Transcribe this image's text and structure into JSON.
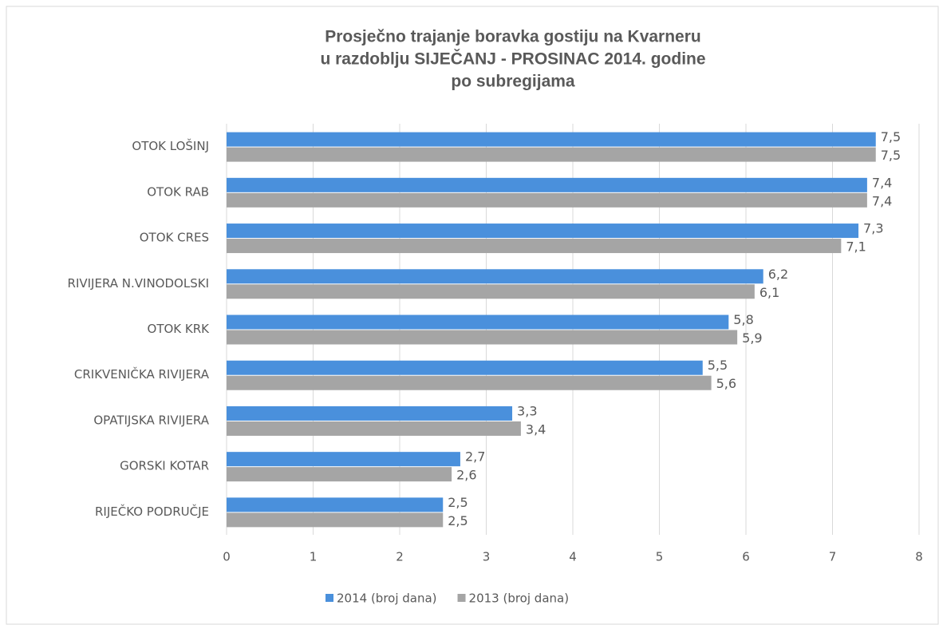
{
  "chart_data": {
    "type": "hbar",
    "title": [
      "Prosječno trajanje boravka gostiju na Kvarneru",
      "u razdoblju SIJEČANJ - PROSINAC 2014. godine",
      "po subregijama"
    ],
    "categories": [
      "OTOK LOŠINJ",
      "OTOK RAB",
      "OTOK CRES",
      "RIVIJERA N.VINODOLSKI",
      "OTOK KRK",
      "CRIKVENIČKA RIVIJERA",
      "OPATIJSKA RIVIJERA",
      "GORSKI KOTAR",
      "RIJEČKO PODRUČJE"
    ],
    "series": [
      {
        "name": "2014 (broj dana)",
        "color": "#4a90dc",
        "values": [
          7.5,
          7.4,
          7.3,
          6.2,
          5.8,
          5.5,
          3.3,
          2.7,
          2.5
        ],
        "value_labels": [
          "7,5",
          "7,4",
          "7,3",
          "6,2",
          "5,8",
          "5,5",
          "3,3",
          "2,7",
          "2,5"
        ]
      },
      {
        "name": "2013 (broj dana)",
        "color": "#a5a5a5",
        "values": [
          7.5,
          7.4,
          7.1,
          6.1,
          5.9,
          5.6,
          3.4,
          2.6,
          2.5
        ],
        "value_labels": [
          "7,5",
          "7,4",
          "7,1",
          "6,1",
          "5,9",
          "5,6",
          "3,4",
          "2,6",
          "2,5"
        ]
      }
    ],
    "xlim": [
      0,
      8
    ],
    "xticks": [
      0,
      1,
      2,
      3,
      4,
      5,
      6,
      7,
      8
    ],
    "grid": true,
    "legend": "bottom"
  }
}
